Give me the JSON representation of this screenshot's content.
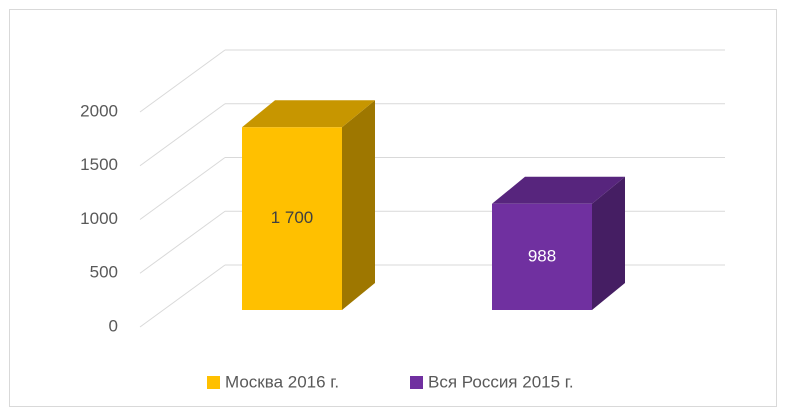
{
  "chart_data": {
    "type": "bar3d",
    "categories": [
      null
    ],
    "series": [
      {
        "name": "Москва 2016 г.",
        "color": "#ffc000",
        "values": [
          1700
        ],
        "value_labels": [
          "1 700"
        ]
      },
      {
        "name": "Вся Россия 2015 г.",
        "color": "#7030a0",
        "values": [
          988
        ]
      }
    ],
    "ylim": [
      0,
      2000
    ],
    "yticks": [
      0,
      500,
      1000,
      1500,
      2000
    ],
    "grid": true,
    "legend": "bottom"
  }
}
